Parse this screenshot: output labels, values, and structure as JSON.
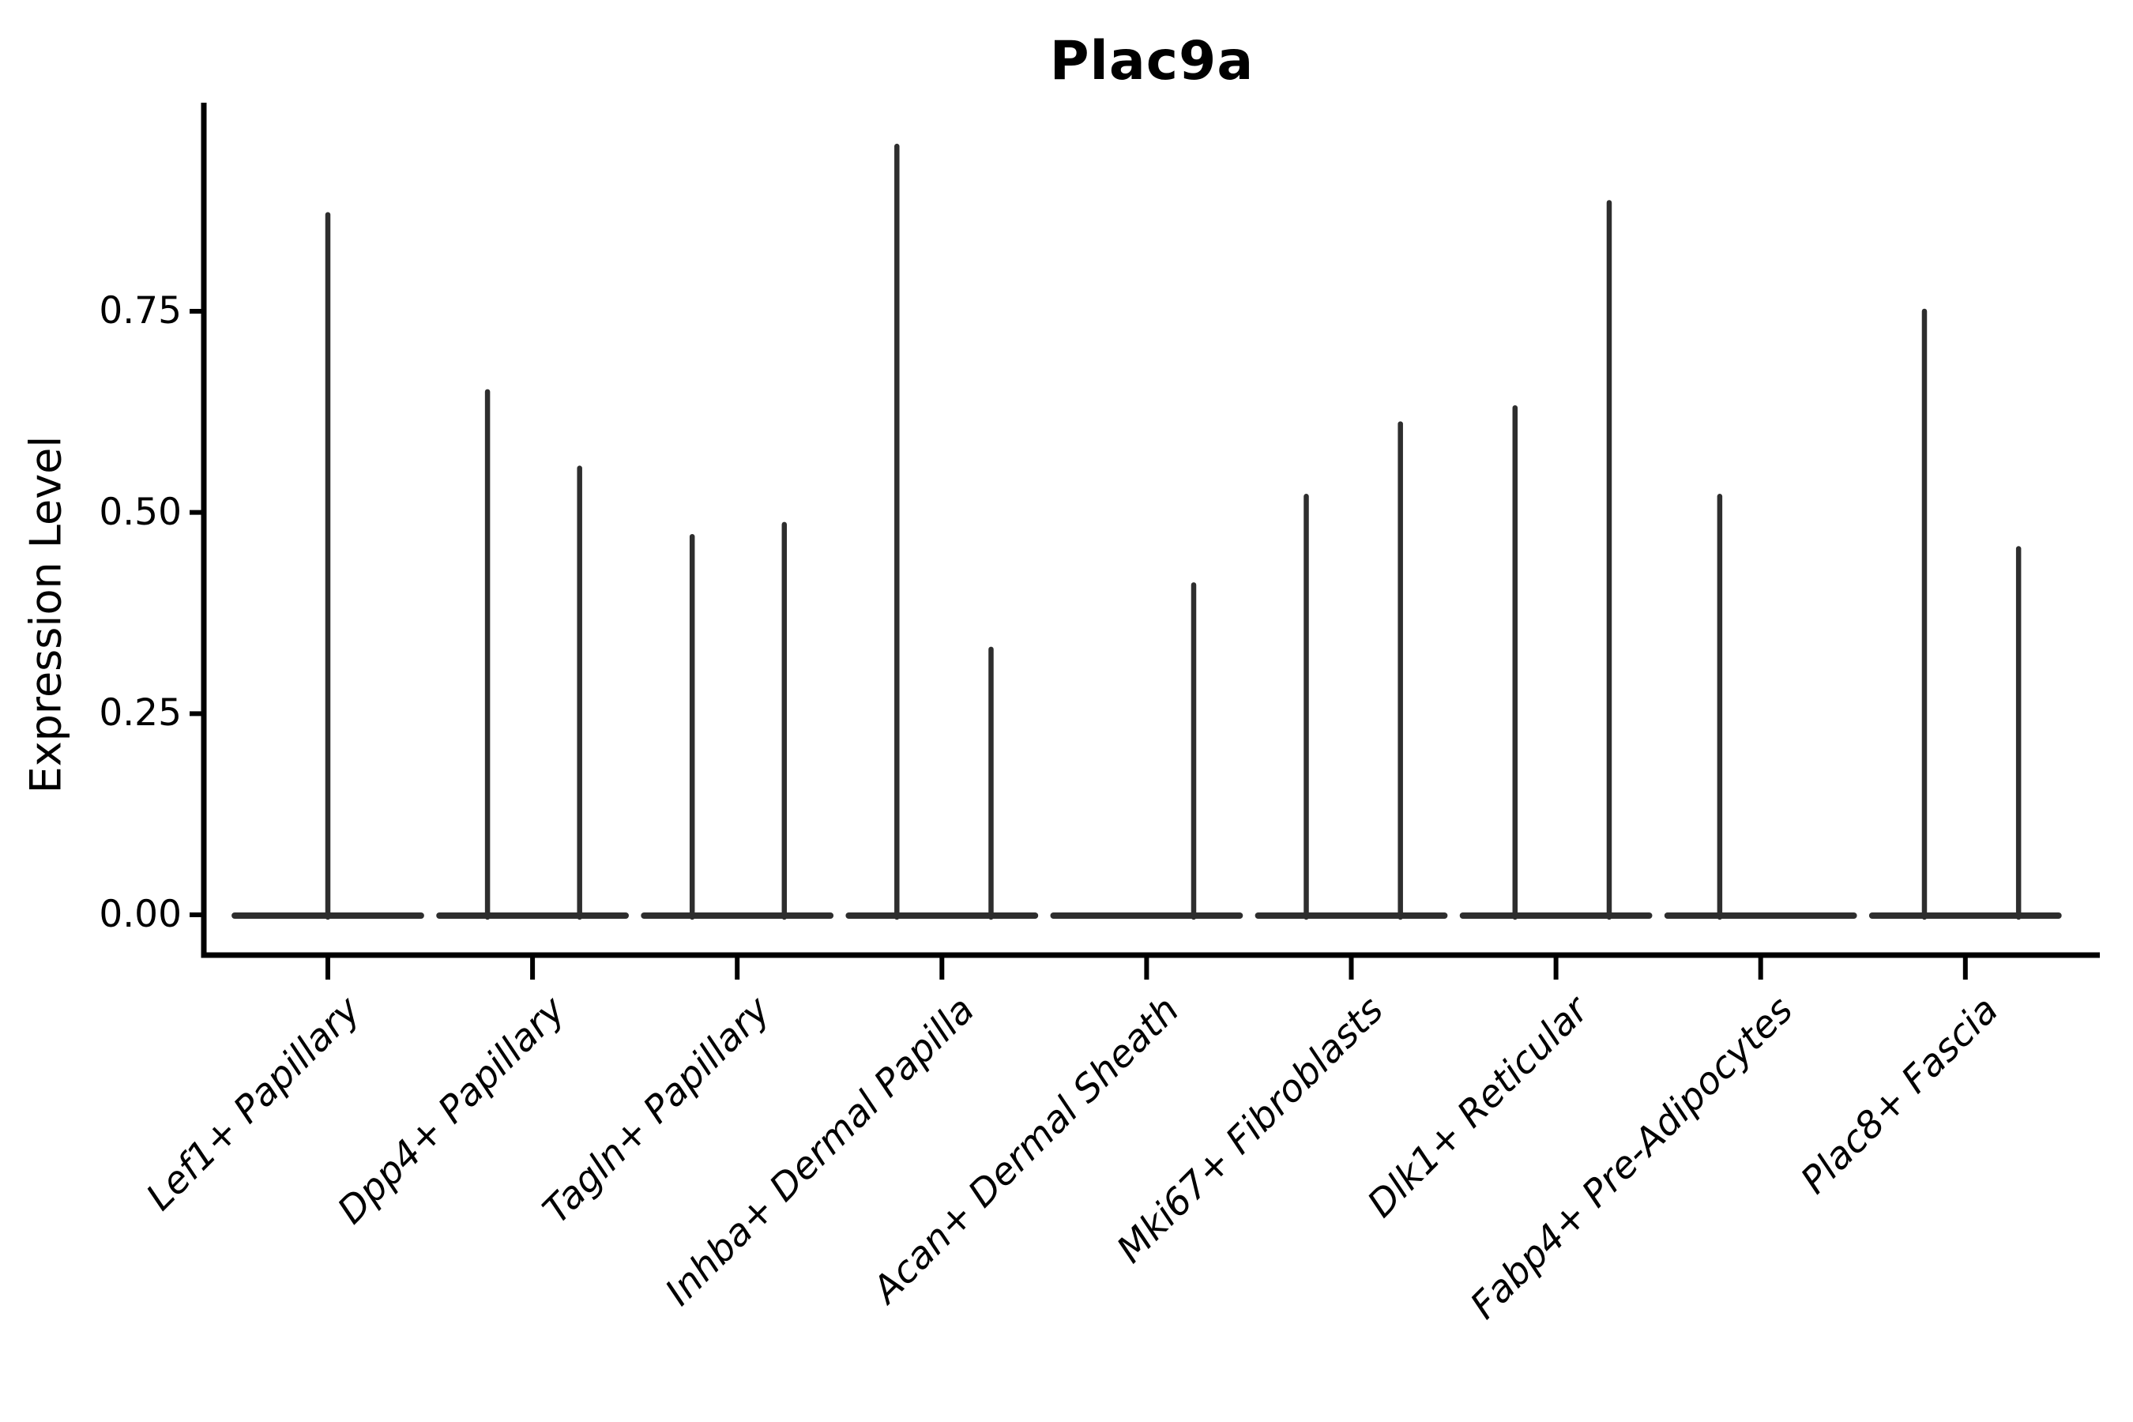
{
  "title": "Plac9a",
  "axes": {
    "ylabel": "Expression Level",
    "xlabel": "",
    "ytick_labels": [
      "0.00",
      "0.25",
      "0.50",
      "0.75"
    ]
  },
  "colors": {
    "background": "#ffffff",
    "violin_line": "#2e2e2e",
    "axis": "#000000",
    "text": "#000000"
  },
  "chart_data": {
    "type": "violin",
    "title": "Plac9a",
    "ylabel": "Expression Level",
    "xlabel": "",
    "ylim": [
      -0.05,
      1.01
    ],
    "yticks": [
      0,
      0.25,
      0.5,
      0.75
    ],
    "ytick_labels": [
      "0.00",
      "0.25",
      "0.50",
      "0.75"
    ],
    "grid": false,
    "legend": false,
    "violin_half_width": 0.455,
    "categories": [
      "Lef1+ Papillary",
      "Dpp4+ Papillary",
      "Tagln+ Papillary",
      "Inhba+ Dermal Papilla",
      "Acan+ Dermal Sheath",
      "Mki67+ Fibroblasts",
      "Dlk1+ Reticular",
      "Fabp4+ Pre-Adipocytes",
      "Plac8+ Fascia"
    ],
    "violins": [
      {
        "category": "Lef1+ Papillary",
        "base_value": 0,
        "spikes": [
          {
            "offset": 0.0,
            "value": 0.87
          }
        ]
      },
      {
        "category": "Dpp4+ Papillary",
        "base_value": 0,
        "spikes": [
          {
            "offset": -0.22,
            "value": 0.65
          },
          {
            "offset": 0.23,
            "value": 0.555
          }
        ]
      },
      {
        "category": "Tagln+ Papillary",
        "base_value": 0,
        "spikes": [
          {
            "offset": -0.22,
            "value": 0.47
          },
          {
            "offset": 0.23,
            "value": 0.485
          }
        ]
      },
      {
        "category": "Inhba+ Dermal Papilla",
        "base_value": 0,
        "spikes": [
          {
            "offset": -0.22,
            "value": 0.955
          },
          {
            "offset": 0.24,
            "value": 0.33
          }
        ]
      },
      {
        "category": "Acan+ Dermal Sheath",
        "base_value": 0,
        "spikes": [
          {
            "offset": 0.23,
            "value": 0.41
          }
        ]
      },
      {
        "category": "Mki67+ Fibroblasts",
        "base_value": 0,
        "spikes": [
          {
            "offset": -0.22,
            "value": 0.52
          },
          {
            "offset": 0.24,
            "value": 0.61
          }
        ]
      },
      {
        "category": "Dlk1+ Reticular",
        "base_value": 0,
        "spikes": [
          {
            "offset": -0.2,
            "value": 0.63
          },
          {
            "offset": 0.26,
            "value": 0.885
          }
        ]
      },
      {
        "category": "Fabp4+ Pre-Adipocytes",
        "base_value": 0,
        "spikes": [
          {
            "offset": -0.2,
            "value": 0.52
          }
        ]
      },
      {
        "category": "Plac8+ Fascia",
        "base_value": 0,
        "spikes": [
          {
            "offset": -0.2,
            "value": 0.75
          },
          {
            "offset": 0.26,
            "value": 0.455
          }
        ]
      }
    ]
  }
}
